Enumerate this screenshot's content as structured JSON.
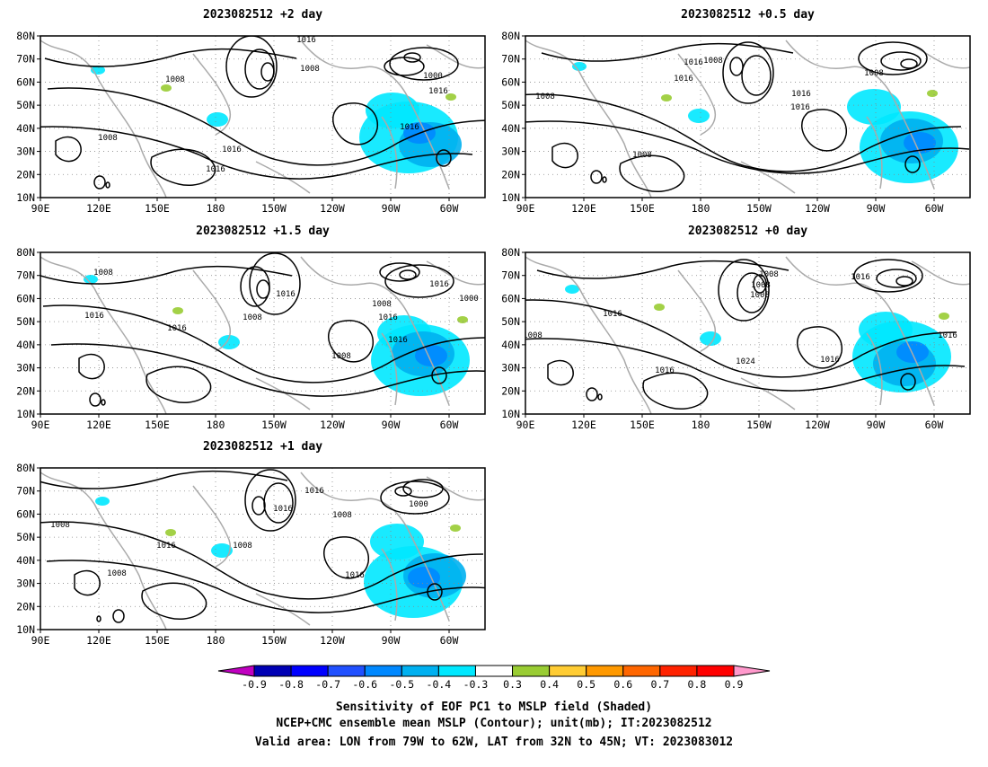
{
  "panels": [
    {
      "title": "2023082512 +2 day"
    },
    {
      "title": "2023082512 +0.5 day"
    },
    {
      "title": "2023082512 +1.5 day"
    },
    {
      "title": "2023082512 +0 day"
    },
    {
      "title": "2023082512 +1 day"
    }
  ],
  "axes": {
    "lat_labels": [
      "80N",
      "70N",
      "60N",
      "50N",
      "40N",
      "30N",
      "20N",
      "10N"
    ],
    "lon_labels": [
      "90E",
      "120E",
      "150E",
      "180",
      "150W",
      "120W",
      "90W",
      "60W"
    ]
  },
  "contour_labels": [
    [
      "1016",
      "1008",
      "1008",
      "1000",
      "1016",
      "1008",
      "1016",
      "1016",
      "1016"
    ],
    [
      "1008",
      "1016",
      "1016",
      "1008",
      "1016",
      "1016",
      "1008",
      "1008"
    ],
    [
      "1008",
      "1016",
      "1008",
      "1016",
      "1016",
      "1000",
      "1016",
      "1016",
      "1008",
      "1008",
      "1016"
    ],
    [
      "1008",
      "1008",
      "1016",
      "1016",
      "1008",
      "1016",
      "1024",
      "1016",
      "1016",
      "1008"
    ],
    [
      "1016",
      "1016",
      "1008",
      "1000",
      "1008",
      "1008",
      "1016",
      "1016",
      "1008"
    ]
  ],
  "colorbar": {
    "labels": [
      "-0.9",
      "-0.8",
      "-0.7",
      "-0.6",
      "-0.5",
      "-0.4",
      "-0.3",
      "0.3",
      "0.4",
      "0.5",
      "0.6",
      "0.7",
      "0.8",
      "0.9"
    ],
    "colors": [
      "#c000c0",
      "#0000b4",
      "#0000ff",
      "#2050ff",
      "#0088ff",
      "#00b0f0",
      "#00e8ff",
      "#ffffff",
      "#99cc33",
      "#ffcc33",
      "#ff9900",
      "#ff6600",
      "#ff2200",
      "#ff0000",
      "#ff99cc"
    ]
  },
  "footer": [
    "Sensitivity of EOF PC1 to MSLP field (Shaded)",
    "NCEP+CMC ensemble mean MSLP (Contour); unit(mb); IT:2023082512",
    "Valid area: LON from 79W to 62W, LAT from 32N to 45N; VT: 2023083012"
  ]
}
